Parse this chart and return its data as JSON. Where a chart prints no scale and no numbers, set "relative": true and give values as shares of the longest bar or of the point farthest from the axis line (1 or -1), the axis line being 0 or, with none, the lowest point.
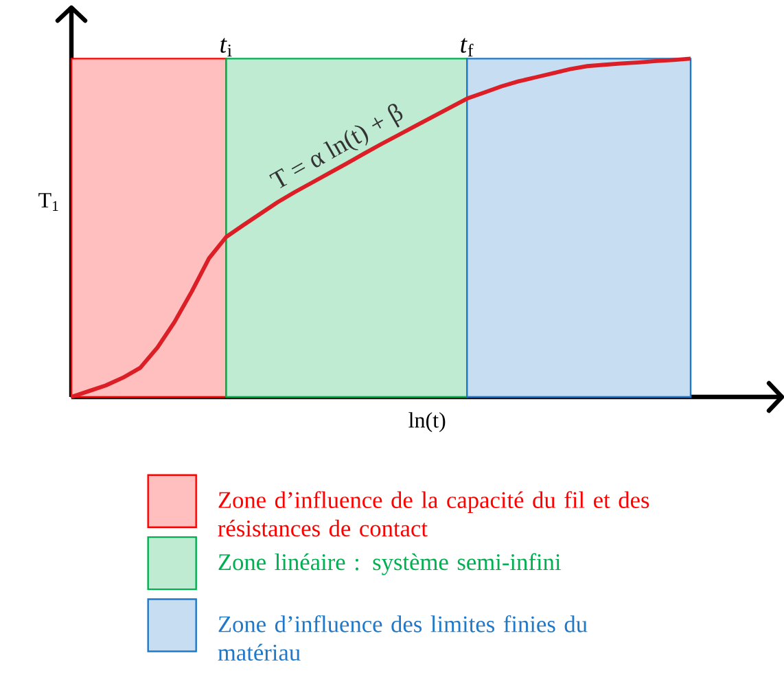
{
  "chart_data": {
    "type": "line",
    "relative": true,
    "xlabel": "ln(t)",
    "ylabel": "T$_{1}$",
    "legend": "bottom",
    "categories": [
      null,
      null,
      null,
      null,
      null,
      null,
      null,
      null,
      null,
      null,
      null,
      null,
      null,
      null,
      null,
      null,
      null,
      null,
      null,
      null,
      null,
      null,
      null,
      null,
      null,
      null,
      null,
      null,
      null,
      null,
      null,
      null,
      null,
      null,
      null,
      null,
      null
    ],
    "series": [
      {
        "type": "area",
        "name": "Zone d’influence de la capacité du fil et des résistances de contact",
        "color": "#ff0000",
        "values": [
          1,
          1,
          1,
          1,
          1,
          1,
          1,
          1,
          1,
          1,
          null,
          null,
          null,
          null,
          null,
          null,
          null,
          null,
          null,
          null,
          null,
          null,
          null,
          null,
          null,
          null,
          null,
          null,
          null,
          null,
          null,
          null,
          null,
          null,
          null,
          null,
          null
        ]
      },
      {
        "type": "area",
        "name": "Zone linéaire : système semi-infini",
        "color": "#00b050",
        "values": [
          null,
          null,
          null,
          null,
          null,
          null,
          null,
          null,
          null,
          1,
          1,
          1,
          1,
          1,
          1,
          1,
          1,
          1,
          1,
          1,
          1,
          1,
          1,
          1,
          null,
          null,
          null,
          null,
          null,
          null,
          null,
          null,
          null,
          null,
          null,
          null,
          null
        ]
      },
      {
        "type": "area",
        "name": "Zone d’influence des limites finies du matériau",
        "color": "#1f78c8",
        "values": [
          null,
          null,
          null,
          null,
          null,
          null,
          null,
          null,
          null,
          null,
          null,
          null,
          null,
          null,
          null,
          null,
          null,
          null,
          null,
          null,
          null,
          null,
          null,
          1,
          1,
          1,
          1,
          1,
          1,
          1,
          1,
          1,
          1,
          1,
          1,
          1,
          1
        ]
      },
      {
        "color": "#dc1f26",
        "values": [
          0,
          0.017,
          0.034,
          0.057,
          0.086,
          0.146,
          0.222,
          0.312,
          0.41,
          0.473,
          0.508,
          0.542,
          0.576,
          0.606,
          0.634,
          0.662,
          0.69,
          0.719,
          0.747,
          0.774,
          0.801,
          0.828,
          0.855,
          0.882,
          0.9,
          0.918,
          0.933,
          0.945,
          0.957,
          0.969,
          0.978,
          0.982,
          0.986,
          0.989,
          0.993,
          0.996,
          1
        ]
      }
    ],
    "annotations": [
      "*t*$_{i}$",
      "*t*$_{f}$",
      "T = α ln(t) + β"
    ]
  }
}
